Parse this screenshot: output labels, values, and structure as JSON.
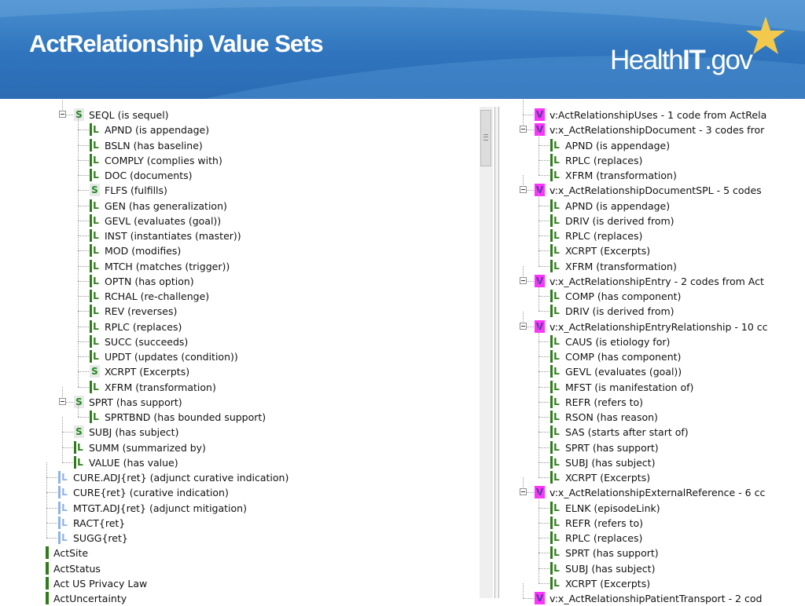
{
  "slide": {
    "title": "ActRelationship Value Sets",
    "logo": {
      "health": "Health",
      "it": "IT",
      "gov": ".gov"
    }
  },
  "colors": {
    "header_blue": "#2f74bd",
    "leaf_green": "#2e7d1a",
    "leaf_pale_blue": "#8fb3e6",
    "valueset_magenta": "#ff33ff",
    "valueset_letter": "#5c3a9e",
    "star_gold": "#f2c94c"
  },
  "left_tree": [
    {
      "depth": 1,
      "badge": "S",
      "toggle": true,
      "label": "SEQL (is sequel)"
    },
    {
      "depth": 2,
      "badge": "L",
      "label": "APND (is appendage)"
    },
    {
      "depth": 2,
      "badge": "L",
      "label": "BSLN (has baseline)"
    },
    {
      "depth": 2,
      "badge": "L",
      "label": "COMPLY (complies with)"
    },
    {
      "depth": 2,
      "badge": "L",
      "label": "DOC (documents)"
    },
    {
      "depth": 2,
      "badge": "S",
      "label": "FLFS (fulfills)"
    },
    {
      "depth": 2,
      "badge": "L",
      "label": "GEN (has generalization)"
    },
    {
      "depth": 2,
      "badge": "L",
      "label": "GEVL (evaluates (goal))"
    },
    {
      "depth": 2,
      "badge": "L",
      "label": "INST (instantiates (master))"
    },
    {
      "depth": 2,
      "badge": "L",
      "label": "MOD (modifies)"
    },
    {
      "depth": 2,
      "badge": "L",
      "label": "MTCH (matches (trigger))"
    },
    {
      "depth": 2,
      "badge": "L",
      "label": "OPTN (has option)"
    },
    {
      "depth": 2,
      "badge": "L",
      "label": "RCHAL (re-challenge)"
    },
    {
      "depth": 2,
      "badge": "L",
      "label": "REV (reverses)"
    },
    {
      "depth": 2,
      "badge": "L",
      "label": "RPLC (replaces)"
    },
    {
      "depth": 2,
      "badge": "L",
      "label": "SUCC (succeeds)"
    },
    {
      "depth": 2,
      "badge": "L",
      "label": "UPDT (updates (condition))"
    },
    {
      "depth": 2,
      "badge": "S",
      "label": "XCRPT (Excerpts)"
    },
    {
      "depth": 2,
      "badge": "L",
      "label": "XFRM (transformation)"
    },
    {
      "depth": 1,
      "badge": "S",
      "toggle": true,
      "label": "SPRT (has support)"
    },
    {
      "depth": 2,
      "badge": "L",
      "label": "SPRTBND (has bounded support)"
    },
    {
      "depth": 1,
      "badge": "S",
      "label": "SUBJ (has subject)"
    },
    {
      "depth": 1,
      "badge": "L",
      "label": "SUMM (summarized by)"
    },
    {
      "depth": 1,
      "badge": "L",
      "label": "VALUE (has value)"
    },
    {
      "depth": 0,
      "badge": "Lp",
      "label": "CURE.ADJ{ret} (adjunct curative indication)"
    },
    {
      "depth": 0,
      "badge": "Lp",
      "label": "CURE{ret} (curative indication)"
    },
    {
      "depth": 0,
      "badge": "Lp",
      "label": "MTGT.ADJ{ret} (adjunct mitigation)"
    },
    {
      "depth": 0,
      "badge": "Lp",
      "label": "RACT{ret}"
    },
    {
      "depth": 0,
      "badge": "Lp",
      "label": "SUGG{ret}"
    },
    {
      "depth": -1,
      "badge": "C",
      "label": "ActSite"
    },
    {
      "depth": -1,
      "badge": "C",
      "label": "ActStatus"
    },
    {
      "depth": -1,
      "badge": "C",
      "label": "Act US Privacy Law"
    },
    {
      "depth": -1,
      "badge": "C",
      "label": "ActUncertainty"
    }
  ],
  "right_tree": [
    {
      "depth": 1,
      "badge": "V",
      "label": "v:ActRelationshipUses -  1 code from ActRela"
    },
    {
      "depth": 1,
      "badge": "V",
      "toggle": true,
      "label": "v:x_ActRelationshipDocument -  3 codes fror"
    },
    {
      "depth": 2,
      "badge": "L",
      "label": "APND (is appendage)"
    },
    {
      "depth": 2,
      "badge": "L",
      "label": "RPLC (replaces)"
    },
    {
      "depth": 2,
      "badge": "L",
      "label": "XFRM (transformation)"
    },
    {
      "depth": 1,
      "badge": "V",
      "toggle": true,
      "label": "v:x_ActRelationshipDocumentSPL -  5 codes"
    },
    {
      "depth": 2,
      "badge": "L",
      "label": "APND (is appendage)"
    },
    {
      "depth": 2,
      "badge": "L",
      "label": "DRIV (is derived from)"
    },
    {
      "depth": 2,
      "badge": "L",
      "label": "RPLC (replaces)"
    },
    {
      "depth": 2,
      "badge": "L",
      "label": "XCRPT (Excerpts)"
    },
    {
      "depth": 2,
      "badge": "L",
      "label": "XFRM (transformation)"
    },
    {
      "depth": 1,
      "badge": "V",
      "toggle": true,
      "label": "v:x_ActRelationshipEntry -  2 codes from Act"
    },
    {
      "depth": 2,
      "badge": "L",
      "label": "COMP (has component)"
    },
    {
      "depth": 2,
      "badge": "L",
      "label": "DRIV (is derived from)"
    },
    {
      "depth": 1,
      "badge": "V",
      "toggle": true,
      "label": "v:x_ActRelationshipEntryRelationship -  10 cc"
    },
    {
      "depth": 2,
      "badge": "L",
      "label": "CAUS (is etiology for)"
    },
    {
      "depth": 2,
      "badge": "L",
      "label": "COMP (has component)"
    },
    {
      "depth": 2,
      "badge": "L",
      "label": "GEVL (evaluates (goal))"
    },
    {
      "depth": 2,
      "badge": "L",
      "label": "MFST (is manifestation of)"
    },
    {
      "depth": 2,
      "badge": "L",
      "label": "REFR (refers to)"
    },
    {
      "depth": 2,
      "badge": "L",
      "label": "RSON (has reason)"
    },
    {
      "depth": 2,
      "badge": "L",
      "label": "SAS (starts after start of)"
    },
    {
      "depth": 2,
      "badge": "L",
      "label": "SPRT (has support)"
    },
    {
      "depth": 2,
      "badge": "L",
      "label": "SUBJ (has subject)"
    },
    {
      "depth": 2,
      "badge": "L",
      "label": "XCRPT (Excerpts)"
    },
    {
      "depth": 1,
      "badge": "V",
      "toggle": true,
      "label": "v:x_ActRelationshipExternalReference -  6 cc"
    },
    {
      "depth": 2,
      "badge": "L",
      "label": "ELNK (episodeLink)"
    },
    {
      "depth": 2,
      "badge": "L",
      "label": "REFR (refers to)"
    },
    {
      "depth": 2,
      "badge": "L",
      "label": "RPLC (replaces)"
    },
    {
      "depth": 2,
      "badge": "L",
      "label": "SPRT (has support)"
    },
    {
      "depth": 2,
      "badge": "L",
      "label": "SUBJ (has subject)"
    },
    {
      "depth": 2,
      "badge": "L",
      "label": "XCRPT (Excerpts)"
    },
    {
      "depth": 1,
      "badge": "V",
      "label": "v:x_ActRelationshipPatientTransport -  2 cod"
    }
  ]
}
